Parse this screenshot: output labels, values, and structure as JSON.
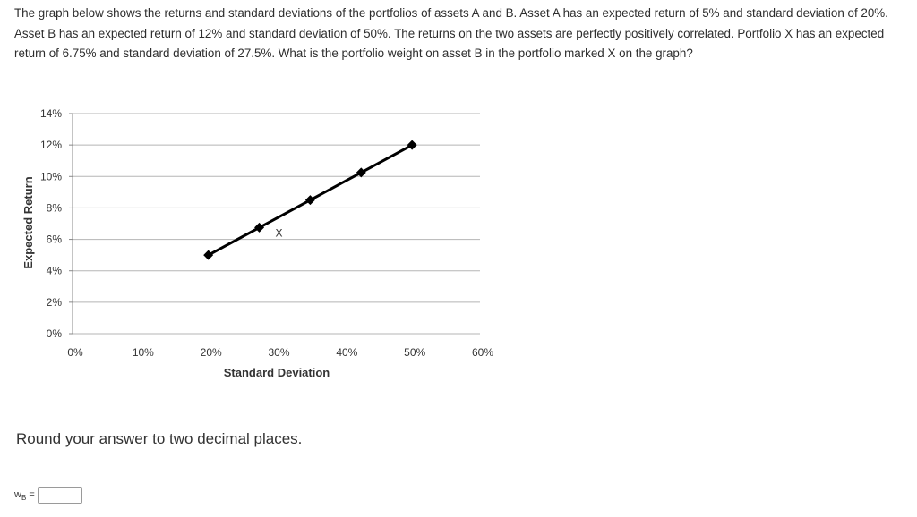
{
  "question": {
    "text": "The graph below shows the returns and standard deviations of the portfolios of assets A and B. Asset A has an expected return of 5% and standard deviation of 20%. Asset B has an expected return of 12% and standard deviation of 50%. The returns on the two assets are perfectly positively correlated. Portfolio X has an expected return of 6.75% and standard deviation of 27.5%. What is the portfolio weight on asset B in the portfolio marked X on the graph?"
  },
  "chart_data": {
    "type": "line",
    "xlabel": "Standard Deviation",
    "ylabel": "Expected Return",
    "xlim": [
      0,
      60
    ],
    "ylim": [
      0,
      14
    ],
    "x_ticks": [
      0,
      10,
      20,
      30,
      40,
      50,
      60
    ],
    "x_tick_labels": [
      "0%",
      "10%",
      "20%",
      "30%",
      "40%",
      "50%",
      "60%"
    ],
    "y_ticks": [
      0,
      2,
      4,
      6,
      8,
      10,
      12,
      14
    ],
    "y_tick_labels": [
      "0%",
      "2%",
      "4%",
      "6%",
      "8%",
      "10%",
      "12%",
      "14%"
    ],
    "grid": "horizontal",
    "series": [
      {
        "x": [
          20,
          27.5,
          35,
          42.5,
          50
        ],
        "y": [
          5,
          6.75,
          8.5,
          10.25,
          12
        ],
        "color": "#000000",
        "marker": "diamond"
      }
    ],
    "annotations": [
      {
        "text": "X",
        "x": 30,
        "y": 6.4
      }
    ]
  },
  "prompt": {
    "round_text": "Round your answer to two decimal places."
  },
  "answer": {
    "label_main": "w",
    "label_sub": "B",
    "label_eq": " =",
    "value": ""
  }
}
